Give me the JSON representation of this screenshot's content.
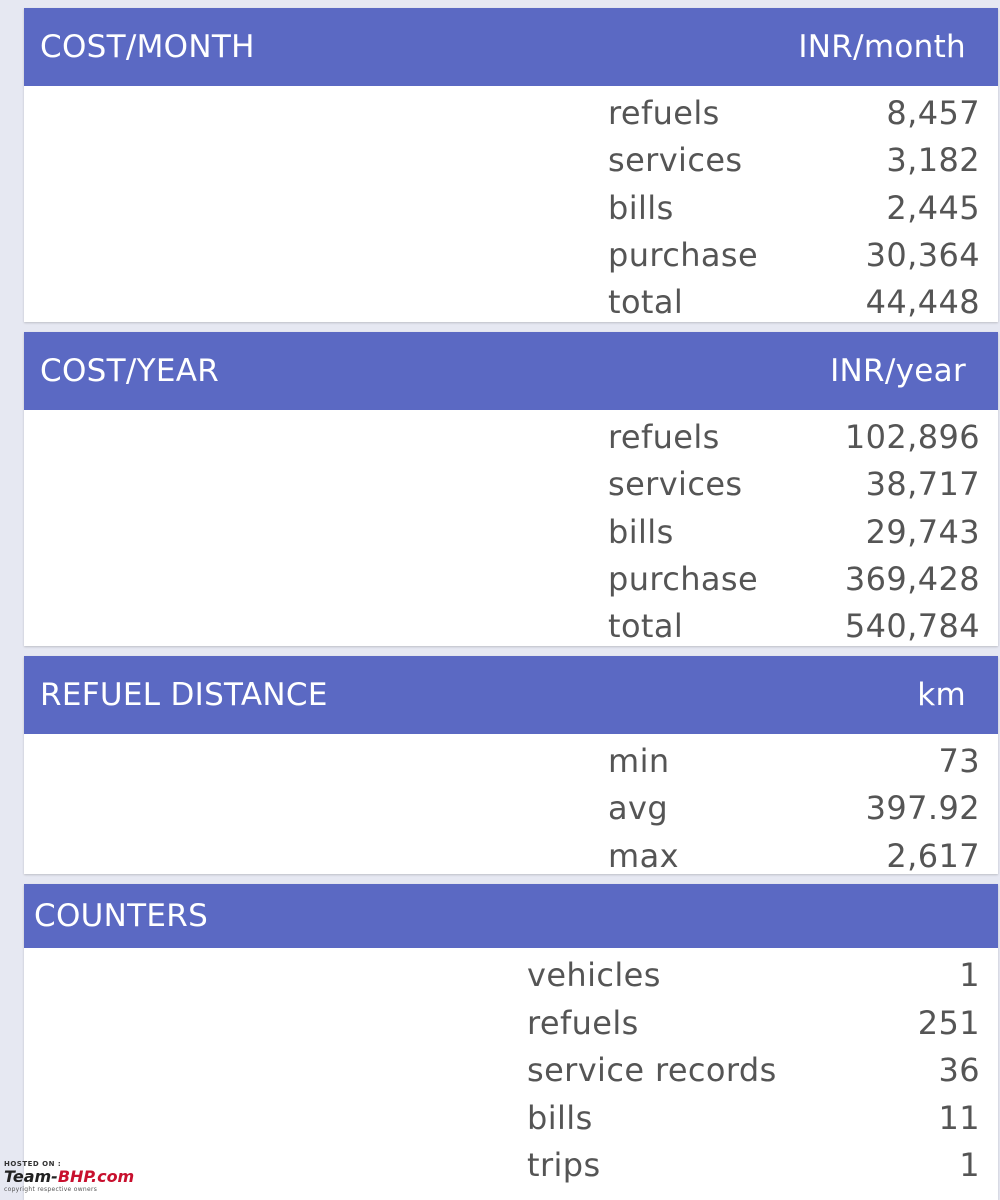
{
  "cost_month": {
    "title": "COST/MONTH",
    "unit": "INR/month",
    "rows": [
      {
        "label": "refuels",
        "value": "8,457"
      },
      {
        "label": "services",
        "value": "3,182"
      },
      {
        "label": "bills",
        "value": "2,445"
      },
      {
        "label": "purchase",
        "value": "30,364"
      },
      {
        "label": "total",
        "value": "44,448"
      }
    ]
  },
  "cost_year": {
    "title": "COST/YEAR",
    "unit": "INR/year",
    "rows": [
      {
        "label": "refuels",
        "value": "102,896"
      },
      {
        "label": "services",
        "value": "38,717"
      },
      {
        "label": "bills",
        "value": "29,743"
      },
      {
        "label": "purchase",
        "value": "369,428"
      },
      {
        "label": "total",
        "value": "540,784"
      }
    ]
  },
  "refuel_distance": {
    "title": "REFUEL DISTANCE",
    "unit": "km",
    "rows": [
      {
        "label": "min",
        "value": "73"
      },
      {
        "label": "avg",
        "value": "397.92"
      },
      {
        "label": "max",
        "value": "2,617"
      }
    ]
  },
  "counters": {
    "title": "COUNTERS",
    "rows": [
      {
        "label": "vehicles",
        "value": "1"
      },
      {
        "label": "refuels",
        "value": "251"
      },
      {
        "label": "service records",
        "value": "36"
      },
      {
        "label": "bills",
        "value": "11"
      },
      {
        "label": "trips",
        "value": "1"
      }
    ]
  },
  "watermark": {
    "hosted": "HOSTED ON :",
    "logo_left": "Team-",
    "logo_right": "BHP.com",
    "copyright": "copyright respective owners"
  },
  "colors": {
    "header": "#5b69c3",
    "background": "#e6e8f2",
    "text": "#555555"
  }
}
